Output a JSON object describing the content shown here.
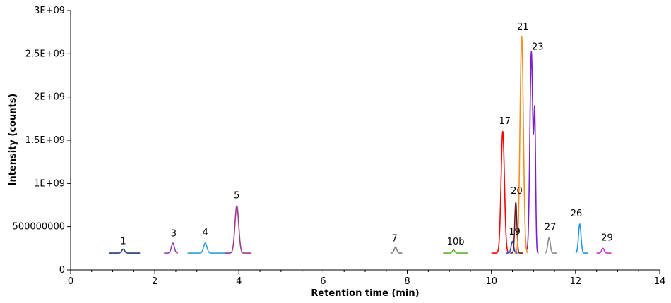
{
  "chart_data": {
    "type": "line",
    "title": "",
    "xlabel": "Retention time (min)",
    "ylabel": "Intensity (counts)",
    "xlim": [
      0,
      14
    ],
    "ylim": [
      0,
      3000000000
    ],
    "x_ticks": [
      0,
      2,
      4,
      6,
      8,
      10,
      12,
      14
    ],
    "x_tick_labels": [
      "0",
      "2",
      "4",
      "6",
      "8",
      "10",
      "12",
      "14"
    ],
    "x_minor_step": 0.5,
    "y_ticks": [
      0,
      500000000,
      1000000000,
      1500000000,
      2000000000,
      2500000000,
      3000000000
    ],
    "y_tick_labels": [
      "0",
      "500000000",
      "1E+09",
      "1.5E+09",
      "2E+09",
      "2.5E+09",
      "3E+09"
    ],
    "grid": false,
    "legend": "none",
    "baseline": 195000000,
    "series": [
      {
        "name": "1",
        "color": "#1f3b73",
        "x_start": 0.92,
        "x_end": 1.65,
        "apex": 1.25,
        "height": 240000000,
        "width": 0.035
      },
      {
        "name": "3",
        "color": "#8e44ad",
        "x_start": 2.22,
        "x_end": 2.55,
        "apex": 2.43,
        "height": 310000000,
        "width": 0.035
      },
      {
        "name": "4",
        "color": "#2e9fd9",
        "x_start": 2.78,
        "x_end": 3.72,
        "apex": 3.2,
        "height": 310000000,
        "width": 0.04
      },
      {
        "name": "5",
        "color": "#9b3a8c",
        "x_start": 3.68,
        "x_end": 4.3,
        "apex": 3.95,
        "height": 740000000,
        "width": 0.045
      },
      {
        "name": "7",
        "color": "#808080",
        "x_start": 7.6,
        "x_end": 7.88,
        "apex": 7.72,
        "height": 265000000,
        "width": 0.03
      },
      {
        "name": "10b",
        "color": "#66b032",
        "x_start": 8.85,
        "x_end": 9.45,
        "apex": 9.1,
        "height": 230000000,
        "width": 0.03
      },
      {
        "name": "17",
        "color": "#ff0000",
        "x_start": 10.0,
        "x_end": 10.42,
        "apex": 10.27,
        "height": 1600000000,
        "width": 0.04
      },
      {
        "name": "19",
        "color": "#1f4fd8",
        "x_start": 10.35,
        "x_end": 10.62,
        "apex": 10.5,
        "height": 330000000,
        "width": 0.03
      },
      {
        "name": "20",
        "color": "#6b1b1b",
        "x_start": 10.45,
        "x_end": 10.75,
        "apex": 10.58,
        "height": 780000000,
        "width": 0.025
      },
      {
        "name": "21",
        "color": "#ff8c1a",
        "x_start": 10.55,
        "x_end": 10.88,
        "apex": 10.72,
        "height": 2700000000,
        "width": 0.04
      },
      {
        "name": "23",
        "color": "#7a1fd6",
        "x_start": 10.85,
        "x_end": 11.12,
        "apex": 10.95,
        "height": 2520000000,
        "width": 0.035,
        "shoulder_x": 11.03,
        "shoulder_height": 1700000000
      },
      {
        "name": "27",
        "color": "#8c8c8c",
        "x_start": 11.28,
        "x_end": 11.55,
        "apex": 11.37,
        "height": 370000000,
        "width": 0.03
      },
      {
        "name": "26",
        "color": "#2196f3",
        "x_start": 12.0,
        "x_end": 12.3,
        "apex": 12.1,
        "height": 530000000,
        "width": 0.03
      },
      {
        "name": "29",
        "color": "#cc33cc",
        "x_start": 12.5,
        "x_end": 12.85,
        "apex": 12.65,
        "height": 250000000,
        "width": 0.03
      }
    ],
    "annotations": [
      {
        "text": "1",
        "x": 1.25,
        "y": 250000000
      },
      {
        "text": "3",
        "x": 2.45,
        "y": 340000000
      },
      {
        "text": "4",
        "x": 3.2,
        "y": 350000000
      },
      {
        "text": "5",
        "x": 3.95,
        "y": 780000000
      },
      {
        "text": "7",
        "x": 7.7,
        "y": 280000000
      },
      {
        "text": "10b",
        "x": 9.15,
        "y": 245000000
      },
      {
        "text": "17",
        "x": 10.32,
        "y": 1640000000
      },
      {
        "text": "19",
        "x": 10.55,
        "y": 360000000
      },
      {
        "text": "20",
        "x": 10.6,
        "y": 830000000
      },
      {
        "text": "21",
        "x": 10.75,
        "y": 2730000000
      },
      {
        "text": "23",
        "x": 11.1,
        "y": 2500000000
      },
      {
        "text": "27",
        "x": 11.4,
        "y": 410000000
      },
      {
        "text": "26",
        "x": 12.02,
        "y": 570000000
      },
      {
        "text": "29",
        "x": 12.75,
        "y": 290000000
      }
    ]
  }
}
